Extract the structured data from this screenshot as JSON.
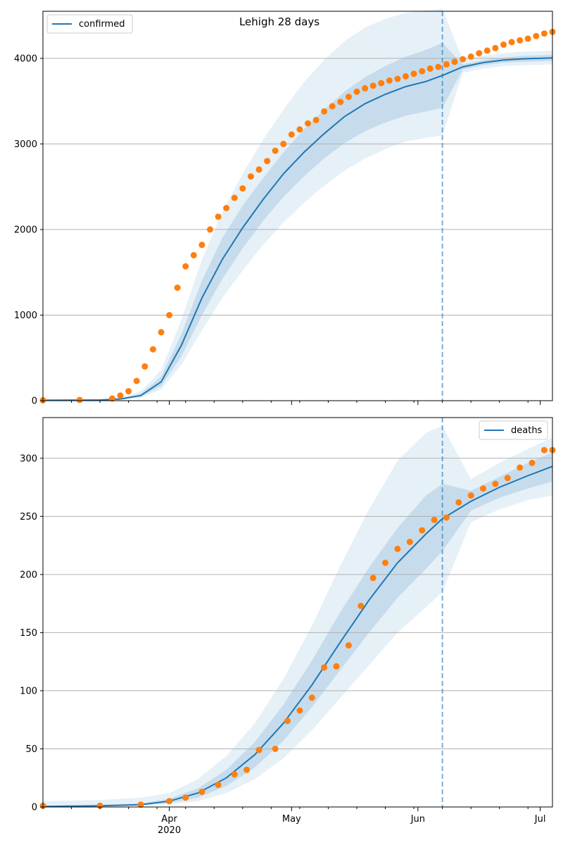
{
  "chart_data": [
    {
      "type": "line",
      "title": "Lehigh 28 days",
      "legend": {
        "label": "confirmed",
        "placement": "top-left"
      },
      "xlabel": "",
      "ylabel": "",
      "x_start": "2020-03-01",
      "x_end": "2020-07-04",
      "forecast_start": "2020-06-07",
      "ylim": [
        0,
        4550
      ],
      "yticks": [
        0,
        1000,
        2000,
        3000,
        4000
      ],
      "grid": true,
      "model": {
        "x": [
          "2020-03-01",
          "2020-03-15",
          "2020-03-20",
          "2020-03-25",
          "2020-03-30",
          "2020-04-04",
          "2020-04-09",
          "2020-04-14",
          "2020-04-19",
          "2020-04-24",
          "2020-04-29",
          "2020-05-04",
          "2020-05-09",
          "2020-05-14",
          "2020-05-19",
          "2020-05-24",
          "2020-05-29",
          "2020-06-03",
          "2020-06-07",
          "2020-06-12",
          "2020-06-17",
          "2020-06-22",
          "2020-06-27",
          "2020-07-04"
        ],
        "median": [
          5,
          8,
          20,
          60,
          220,
          650,
          1200,
          1650,
          2020,
          2350,
          2650,
          2900,
          3120,
          3320,
          3470,
          3580,
          3670,
          3730,
          3800,
          3900,
          3950,
          3980,
          3995,
          4005
        ],
        "band_inner": {
          "lower": [
            5,
            7,
            15,
            45,
            170,
            520,
            1000,
            1420,
            1780,
            2100,
            2380,
            2620,
            2830,
            3010,
            3150,
            3250,
            3330,
            3380,
            3420,
            3870,
            3920,
            3950,
            3960,
            3970
          ],
          "upper": [
            5,
            9,
            25,
            80,
            280,
            780,
            1400,
            1900,
            2280,
            2600,
            2900,
            3170,
            3400,
            3610,
            3780,
            3910,
            4020,
            4100,
            4180,
            3930,
            3980,
            4010,
            4030,
            4040
          ]
        },
        "band_outer": {
          "lower": [
            4,
            6,
            12,
            35,
            130,
            420,
            820,
            1200,
            1520,
            1820,
            2080,
            2310,
            2510,
            2690,
            2830,
            2940,
            3030,
            3070,
            3100,
            3830,
            3880,
            3910,
            3920,
            3930
          ],
          "upper": [
            6,
            11,
            35,
            110,
            360,
            950,
            1650,
            2200,
            2650,
            3050,
            3400,
            3720,
            3980,
            4200,
            4360,
            4460,
            4530,
            4560,
            4580,
            3980,
            4030,
            4060,
            4080,
            4090
          ]
        }
      },
      "observed": {
        "x": [
          "2020-03-01",
          "2020-03-10",
          "2020-03-18",
          "2020-03-20",
          "2020-03-22",
          "2020-03-24",
          "2020-03-26",
          "2020-03-28",
          "2020-03-30",
          "2020-04-01",
          "2020-04-03",
          "2020-04-05",
          "2020-04-07",
          "2020-04-09",
          "2020-04-11",
          "2020-04-13",
          "2020-04-15",
          "2020-04-17",
          "2020-04-19",
          "2020-04-21",
          "2020-04-23",
          "2020-04-25",
          "2020-04-27",
          "2020-04-29",
          "2020-05-01",
          "2020-05-03",
          "2020-05-05",
          "2020-05-07",
          "2020-05-09",
          "2020-05-11",
          "2020-05-13",
          "2020-05-15",
          "2020-05-17",
          "2020-05-19",
          "2020-05-21",
          "2020-05-23",
          "2020-05-25",
          "2020-05-27",
          "2020-05-29",
          "2020-05-31",
          "2020-06-02",
          "2020-06-04",
          "2020-06-06",
          "2020-06-08",
          "2020-06-10",
          "2020-06-12",
          "2020-06-14",
          "2020-06-16",
          "2020-06-18",
          "2020-06-20",
          "2020-06-22",
          "2020-06-24",
          "2020-06-26",
          "2020-06-28",
          "2020-06-30",
          "2020-07-02",
          "2020-07-04"
        ],
        "y": [
          5,
          8,
          25,
          60,
          110,
          230,
          400,
          600,
          800,
          1000,
          1320,
          1570,
          1700,
          1820,
          2000,
          2150,
          2250,
          2370,
          2480,
          2620,
          2700,
          2800,
          2920,
          3000,
          3110,
          3170,
          3240,
          3280,
          3380,
          3440,
          3490,
          3550,
          3610,
          3650,
          3680,
          3710,
          3740,
          3760,
          3790,
          3820,
          3850,
          3880,
          3900,
          3930,
          3960,
          3990,
          4020,
          4060,
          4090,
          4120,
          4160,
          4190,
          4210,
          4230,
          4260,
          4290,
          4310
        ]
      }
    },
    {
      "type": "line",
      "title": "",
      "legend": {
        "label": "deaths",
        "placement": "top-right"
      },
      "xlabel": "",
      "ylabel": "",
      "x_start": "2020-03-01",
      "x_end": "2020-07-04",
      "forecast_start": "2020-06-07",
      "ylim": [
        0,
        335
      ],
      "yticks": [
        0,
        50,
        100,
        150,
        200,
        250,
        300
      ],
      "grid": true,
      "xticks": [
        {
          "date": "2020-04-01",
          "label": "Apr",
          "sublabel": "2020"
        },
        {
          "date": "2020-05-01",
          "label": "May",
          "sublabel": ""
        },
        {
          "date": "2020-06-01",
          "label": "Jun",
          "sublabel": ""
        },
        {
          "date": "2020-07-01",
          "label": "Jul",
          "sublabel": ""
        }
      ],
      "model": {
        "x": [
          "2020-03-01",
          "2020-03-15",
          "2020-03-25",
          "2020-04-01",
          "2020-04-08",
          "2020-04-15",
          "2020-04-22",
          "2020-04-29",
          "2020-05-06",
          "2020-05-13",
          "2020-05-20",
          "2020-05-27",
          "2020-06-03",
          "2020-06-07",
          "2020-06-14",
          "2020-06-21",
          "2020-06-28",
          "2020-07-04"
        ],
        "median": [
          0.5,
          1,
          2,
          5,
          12,
          25,
          45,
          72,
          105,
          142,
          178,
          210,
          235,
          248,
          263,
          275,
          285,
          293
        ],
        "band_inner": {
          "lower": [
            0.3,
            0.6,
            1.5,
            3.5,
            8,
            18,
            34,
            57,
            86,
            118,
            150,
            180,
            205,
            220,
            255,
            266,
            274,
            280
          ],
          "upper": [
            0.8,
            1.5,
            3,
            7,
            16,
            32,
            56,
            88,
            126,
            168,
            206,
            240,
            268,
            278,
            272,
            284,
            296,
            305
          ]
        },
        "band_outer": {
          "lower": [
            0.1,
            0.3,
            1,
            2.5,
            5,
            12,
            24,
            42,
            66,
            94,
            122,
            150,
            172,
            185,
            245,
            256,
            264,
            268
          ],
          "upper": [
            5,
            6,
            8,
            12,
            24,
            44,
            72,
            110,
            156,
            208,
            256,
            298,
            322,
            328,
            282,
            296,
            308,
            318
          ]
        }
      },
      "observed": {
        "x": [
          "2020-03-01",
          "2020-03-15",
          "2020-03-25",
          "2020-04-01",
          "2020-04-05",
          "2020-04-09",
          "2020-04-13",
          "2020-04-17",
          "2020-04-20",
          "2020-04-23",
          "2020-04-27",
          "2020-04-30",
          "2020-05-03",
          "2020-05-06",
          "2020-05-09",
          "2020-05-12",
          "2020-05-15",
          "2020-05-18",
          "2020-05-21",
          "2020-05-24",
          "2020-05-27",
          "2020-05-30",
          "2020-06-02",
          "2020-06-05",
          "2020-06-08",
          "2020-06-11",
          "2020-06-14",
          "2020-06-17",
          "2020-06-20",
          "2020-06-23",
          "2020-06-26",
          "2020-06-29",
          "2020-07-02",
          "2020-07-04"
        ],
        "y": [
          1,
          1,
          2,
          5,
          8,
          13,
          19,
          28,
          32,
          49,
          50,
          74,
          83,
          94,
          120,
          121,
          139,
          173,
          197,
          210,
          222,
          228,
          238,
          247,
          249,
          262,
          268,
          274,
          278,
          283,
          292,
          296,
          307,
          307
        ]
      }
    }
  ]
}
